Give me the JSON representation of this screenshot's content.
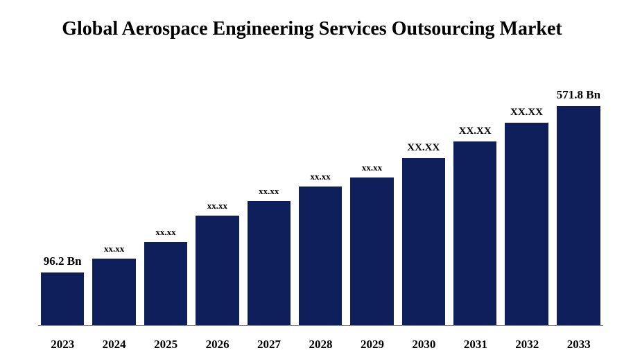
{
  "chart": {
    "type": "bar",
    "title": "Global Aerospace Engineering Services Outsourcing Market",
    "title_fontsize": 28,
    "title_color": "#000000",
    "background_color": "#ffffff",
    "bar_color": "#0e1f5b",
    "axis_color": "#888888",
    "x_label_fontsize": 17,
    "x_label_color": "#000000",
    "value_label_color": "#000000",
    "ylim_max": 571.8,
    "bars": [
      {
        "year": "2023",
        "value": 96.2,
        "label": "96.2 Bn",
        "label_fontsize": 17,
        "height_pct": 22
      },
      {
        "year": "2024",
        "value": 130,
        "label": "xx.xx",
        "label_fontsize": 13,
        "height_pct": 28
      },
      {
        "year": "2025",
        "value": 170,
        "label": "xx.xx",
        "label_fontsize": 13,
        "height_pct": 35
      },
      {
        "year": "2026",
        "value": 225,
        "label": "xx.xx",
        "label_fontsize": 13,
        "height_pct": 46
      },
      {
        "year": "2027",
        "value": 260,
        "label": "xx.xx",
        "label_fontsize": 13,
        "height_pct": 52
      },
      {
        "year": "2028",
        "value": 295,
        "label": "xx.xx",
        "label_fontsize": 13,
        "height_pct": 58
      },
      {
        "year": "2029",
        "value": 320,
        "label": "xx.xx",
        "label_fontsize": 13,
        "height_pct": 62
      },
      {
        "year": "2030",
        "value": 380,
        "label": "XX.XX",
        "label_fontsize": 15,
        "height_pct": 70
      },
      {
        "year": "2031",
        "value": 430,
        "label": "XX.XX",
        "label_fontsize": 15,
        "height_pct": 77
      },
      {
        "year": "2032",
        "value": 490,
        "label": "XX.XX",
        "label_fontsize": 15,
        "height_pct": 85
      },
      {
        "year": "2033",
        "value": 571.8,
        "label": "571.8 Bn",
        "label_fontsize": 17,
        "height_pct": 92
      }
    ]
  }
}
